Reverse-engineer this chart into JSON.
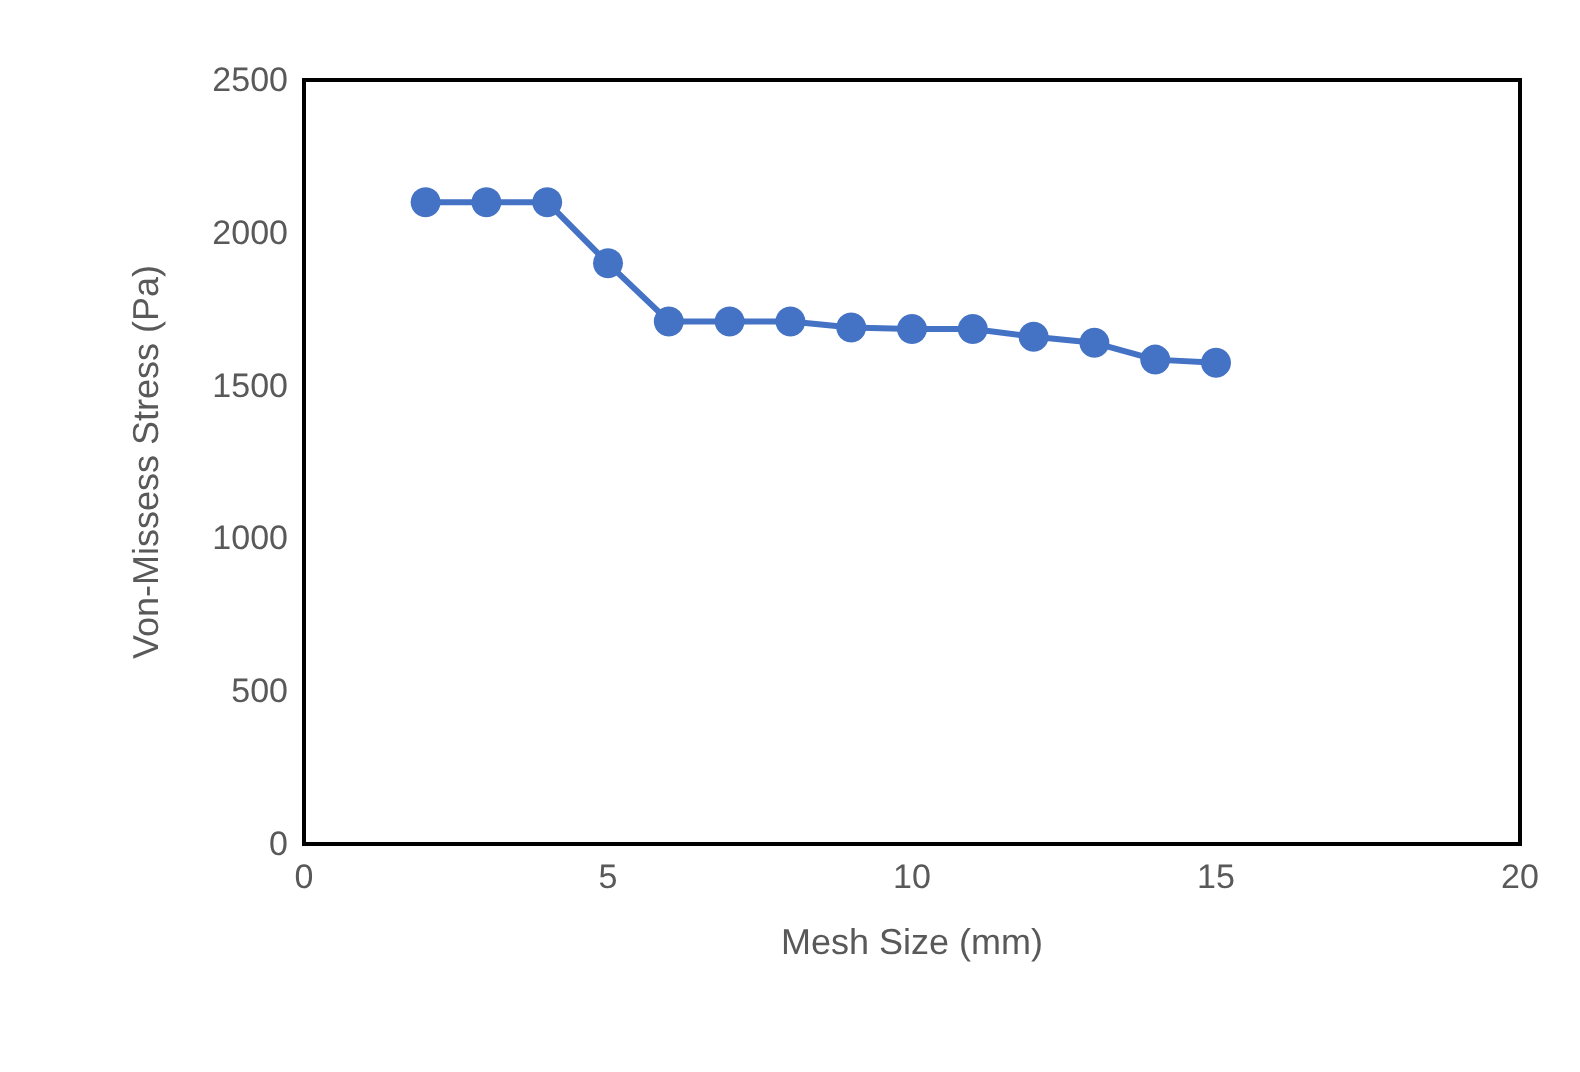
{
  "chart_data": {
    "type": "line",
    "xlabel": "Mesh Size (mm)",
    "ylabel": "Von-Missess Stress (Pa)",
    "x": [
      2,
      3,
      4,
      5,
      6,
      7,
      8,
      9,
      10,
      11,
      12,
      13,
      14,
      15
    ],
    "series": [
      {
        "color": "#4472c4",
        "values": [
          2100,
          2100,
          2100,
          1900,
          1710,
          1710,
          1710,
          1690,
          1685,
          1685,
          1660,
          1640,
          1585,
          1575
        ]
      }
    ],
    "xlim": [
      0,
      20
    ],
    "xticks": [
      0,
      5,
      10,
      15,
      20
    ],
    "ylim": [
      0,
      2500
    ],
    "yticks": [
      0,
      500,
      1000,
      1500,
      2000,
      2500
    ],
    "grid": false,
    "marker": "circle",
    "line_style": "solid"
  }
}
